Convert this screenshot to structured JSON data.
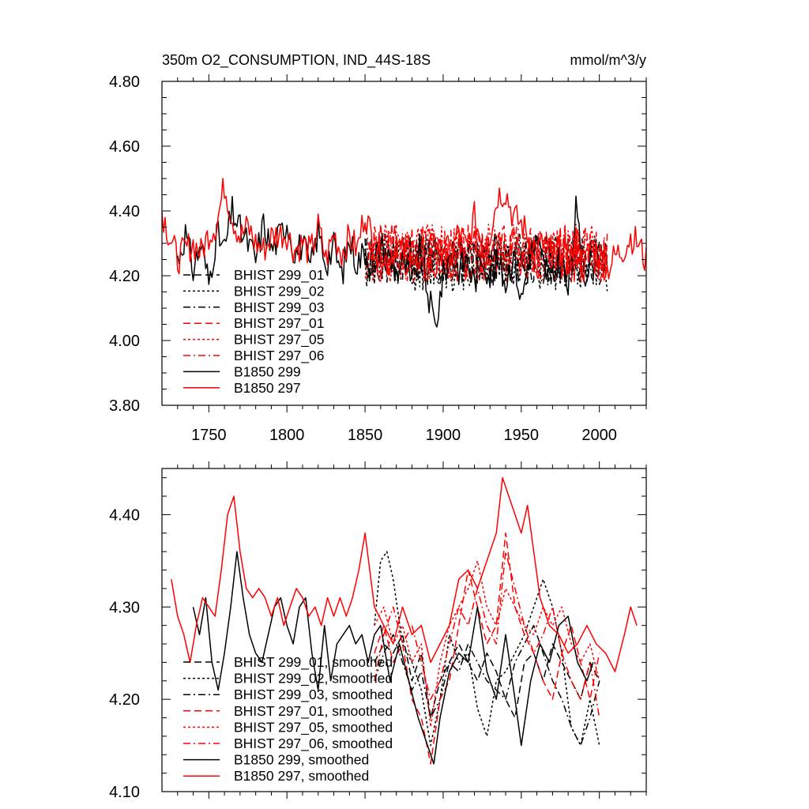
{
  "title_left": "350m O2_CONSUMPTION, IND_44S-18S",
  "title_right": "mmol/m^3/y",
  "colors": {
    "black": "#000000",
    "red": "#ff0000"
  },
  "chart_data": [
    {
      "type": "line",
      "title": "350m O2_CONSUMPTION, IND_44S-18S",
      "units": "mmol/m^3/y",
      "xlim": [
        1720,
        2030
      ],
      "ylim": [
        3.8,
        4.8
      ],
      "x_ticks": [
        1750,
        1800,
        1850,
        1900,
        1950,
        2000
      ],
      "x_tick_labels": [
        "1750",
        "1800",
        "1850",
        "1900",
        "1950",
        "2000"
      ],
      "y_ticks": [
        3.8,
        4.0,
        4.2,
        4.4,
        4.6,
        4.8
      ],
      "y_tick_labels": [
        "3.80",
        "4.00",
        "4.20",
        "4.40",
        "4.60",
        "4.80"
      ],
      "legend": "lower-left",
      "series": [
        {
          "name": "BHIST 299_01",
          "color": "#000000",
          "dash": "long-dash",
          "start": 1850,
          "end": 2005,
          "mean": 4.25,
          "amp": 0.08,
          "seed": 11
        },
        {
          "name": "BHIST 299_02",
          "color": "#000000",
          "dash": "dot",
          "start": 1850,
          "end": 2005,
          "mean": 4.24,
          "amp": 0.09,
          "seed": 12
        },
        {
          "name": "BHIST 299_03",
          "color": "#000000",
          "dash": "dash-dot",
          "start": 1850,
          "end": 2005,
          "mean": 4.25,
          "amp": 0.08,
          "seed": 13
        },
        {
          "name": "BHIST 297_01",
          "color": "#ff0000",
          "dash": "long-dash",
          "start": 1850,
          "end": 2005,
          "mean": 4.27,
          "amp": 0.09,
          "seed": 21
        },
        {
          "name": "BHIST 297_05",
          "color": "#ff0000",
          "dash": "dot",
          "start": 1850,
          "end": 2005,
          "mean": 4.27,
          "amp": 0.09,
          "seed": 22
        },
        {
          "name": "BHIST 297_06",
          "color": "#ff0000",
          "dash": "dash-dot",
          "start": 1850,
          "end": 2005,
          "mean": 4.27,
          "amp": 0.09,
          "seed": 23
        },
        {
          "name": "B1850 299",
          "color": "#000000",
          "dash": "solid",
          "start": 1730,
          "end": 1995,
          "x": [
            1730,
            1735,
            1740,
            1745,
            1750,
            1755,
            1760,
            1765,
            1770,
            1775,
            1780,
            1785,
            1790,
            1795,
            1800,
            1805,
            1810,
            1815,
            1820,
            1825,
            1830,
            1835,
            1840,
            1845,
            1850,
            1855,
            1860,
            1865,
            1870,
            1875,
            1880,
            1885,
            1890,
            1895,
            1900,
            1905,
            1910,
            1915,
            1920,
            1925,
            1930,
            1935,
            1940,
            1945,
            1950,
            1955,
            1960,
            1965,
            1970,
            1975,
            1980,
            1985,
            1990,
            1995
          ],
          "y": [
            4.25,
            4.33,
            4.22,
            4.3,
            4.18,
            4.33,
            4.28,
            4.4,
            4.34,
            4.3,
            4.25,
            4.36,
            4.28,
            4.32,
            4.37,
            4.27,
            4.3,
            4.22,
            4.34,
            4.24,
            4.29,
            4.2,
            4.31,
            4.24,
            4.28,
            4.22,
            4.3,
            4.26,
            4.21,
            4.25,
            4.16,
            4.28,
            4.15,
            4.04,
            4.2,
            4.27,
            4.22,
            4.25,
            4.18,
            4.26,
            4.2,
            4.24,
            4.18,
            4.27,
            4.12,
            4.26,
            4.3,
            4.22,
            4.18,
            4.27,
            4.15,
            4.4,
            4.2,
            4.27
          ],
          "amp": 0.05,
          "seed": 31
        },
        {
          "name": "B1850 297",
          "color": "#ff0000",
          "dash": "solid",
          "start": 1720,
          "end": 2030,
          "x": [
            1720,
            1725,
            1730,
            1735,
            1740,
            1745,
            1750,
            1755,
            1760,
            1765,
            1770,
            1775,
            1780,
            1785,
            1790,
            1795,
            1800,
            1805,
            1810,
            1815,
            1820,
            1825,
            1830,
            1835,
            1840,
            1845,
            1850,
            1855,
            1860,
            1865,
            1870,
            1875,
            1880,
            1885,
            1890,
            1895,
            1900,
            1905,
            1910,
            1915,
            1920,
            1925,
            1930,
            1935,
            1940,
            1945,
            1950,
            1955,
            1960,
            1965,
            1970,
            1975,
            1980,
            1985,
            1990,
            1995,
            2000,
            2005,
            2010,
            2015,
            2020,
            2025,
            2030
          ],
          "y": [
            4.4,
            4.32,
            4.25,
            4.28,
            4.3,
            4.27,
            4.33,
            4.36,
            4.48,
            4.38,
            4.32,
            4.35,
            4.3,
            4.28,
            4.32,
            4.33,
            4.33,
            4.28,
            4.3,
            4.27,
            4.35,
            4.25,
            4.33,
            4.27,
            4.32,
            4.28,
            4.4,
            4.3,
            4.28,
            4.24,
            4.3,
            4.27,
            4.28,
            4.2,
            4.24,
            4.22,
            4.3,
            4.26,
            4.34,
            4.28,
            4.38,
            4.3,
            4.33,
            4.45,
            4.46,
            4.38,
            4.36,
            4.32,
            4.28,
            4.3,
            4.26,
            4.28,
            4.24,
            4.3,
            4.22,
            4.3,
            4.26,
            4.22,
            4.26,
            4.28,
            4.32,
            4.3,
            4.24
          ],
          "amp": 0.05,
          "seed": 32
        }
      ]
    },
    {
      "type": "line",
      "title": "",
      "xlim": [
        1720,
        2030
      ],
      "ylim": [
        4.1,
        4.45
      ],
      "x_ticks": [
        1750,
        1800,
        1850,
        1900,
        1950,
        2000
      ],
      "y_ticks": [
        4.1,
        4.2,
        4.3,
        4.4
      ],
      "y_tick_labels": [
        "4.10",
        "4.20",
        "4.30",
        "4.40"
      ],
      "legend": "lower-left",
      "series": [
        {
          "name": "BHIST 299_01, smoothed",
          "color": "#000000",
          "dash": "long-dash",
          "x": [
            1856,
            1862,
            1868,
            1874,
            1880,
            1886,
            1892,
            1898,
            1904,
            1910,
            1916,
            1922,
            1928,
            1934,
            1940,
            1946,
            1952,
            1958,
            1964,
            1970,
            1976,
            1982,
            1988,
            1994,
            2000
          ],
          "y": [
            4.24,
            4.26,
            4.25,
            4.27,
            4.22,
            4.25,
            4.18,
            4.22,
            4.24,
            4.26,
            4.24,
            4.22,
            4.25,
            4.23,
            4.2,
            4.18,
            4.24,
            4.25,
            4.22,
            4.26,
            4.24,
            4.22,
            4.2,
            4.24,
            4.22
          ]
        },
        {
          "name": "BHIST 299_02, smoothed",
          "color": "#000000",
          "dash": "dot",
          "x": [
            1856,
            1860,
            1864,
            1868,
            1874,
            1880,
            1886,
            1892,
            1898,
            1904,
            1910,
            1916,
            1922,
            1928,
            1934,
            1940,
            1946,
            1952,
            1958,
            1964,
            1970,
            1976,
            1982,
            1988,
            1994,
            2000
          ],
          "y": [
            4.28,
            4.35,
            4.36,
            4.33,
            4.26,
            4.24,
            4.21,
            4.15,
            4.2,
            4.27,
            4.24,
            4.25,
            4.19,
            4.16,
            4.22,
            4.23,
            4.25,
            4.27,
            4.3,
            4.33,
            4.3,
            4.25,
            4.17,
            4.15,
            4.2,
            4.15
          ]
        },
        {
          "name": "BHIST 299_03, smoothed",
          "color": "#000000",
          "dash": "dash-dot",
          "x": [
            1856,
            1862,
            1868,
            1874,
            1880,
            1886,
            1892,
            1898,
            1904,
            1910,
            1916,
            1922,
            1928,
            1934,
            1940,
            1946,
            1952,
            1958,
            1964,
            1970,
            1976,
            1982,
            1988,
            1994,
            2000
          ],
          "y": [
            4.22,
            4.25,
            4.27,
            4.24,
            4.21,
            4.23,
            4.18,
            4.2,
            4.24,
            4.23,
            4.26,
            4.24,
            4.22,
            4.21,
            4.2,
            4.24,
            4.26,
            4.28,
            4.25,
            4.22,
            4.2,
            4.17,
            4.15,
            4.18,
            4.22
          ]
        },
        {
          "name": "BHIST 297_01, smoothed",
          "color": "#ff0000",
          "dash": "long-dash",
          "x": [
            1856,
            1862,
            1868,
            1874,
            1880,
            1886,
            1892,
            1898,
            1904,
            1910,
            1916,
            1922,
            1928,
            1934,
            1940,
            1946,
            1952,
            1958,
            1964,
            1970,
            1976,
            1982,
            1988,
            1994,
            2000
          ],
          "y": [
            4.25,
            4.28,
            4.24,
            4.26,
            4.2,
            4.18,
            4.13,
            4.2,
            4.22,
            4.28,
            4.34,
            4.3,
            4.26,
            4.28,
            4.38,
            4.3,
            4.27,
            4.25,
            4.22,
            4.2,
            4.25,
            4.28,
            4.24,
            4.2,
            4.25
          ]
        },
        {
          "name": "BHIST 297_05, smoothed",
          "color": "#ff0000",
          "dash": "dot",
          "x": [
            1856,
            1862,
            1868,
            1874,
            1880,
            1886,
            1892,
            1898,
            1904,
            1910,
            1916,
            1922,
            1928,
            1934,
            1940,
            1946,
            1952,
            1958,
            1964,
            1970,
            1976,
            1982,
            1988,
            1994,
            2000
          ],
          "y": [
            4.28,
            4.3,
            4.26,
            4.28,
            4.24,
            4.26,
            4.17,
            4.24,
            4.28,
            4.3,
            4.32,
            4.35,
            4.3,
            4.28,
            4.32,
            4.3,
            4.28,
            4.27,
            4.3,
            4.28,
            4.3,
            4.26,
            4.24,
            4.26,
            4.22
          ]
        },
        {
          "name": "BHIST 297_06, smoothed",
          "color": "#ff0000",
          "dash": "dash-dot",
          "x": [
            1856,
            1862,
            1868,
            1874,
            1880,
            1886,
            1892,
            1898,
            1904,
            1910,
            1916,
            1922,
            1928,
            1934,
            1940,
            1946,
            1952,
            1958,
            1964,
            1970,
            1976,
            1982,
            1988,
            1994,
            2000
          ],
          "y": [
            4.22,
            4.27,
            4.3,
            4.26,
            4.28,
            4.24,
            4.2,
            4.22,
            4.26,
            4.3,
            4.28,
            4.32,
            4.28,
            4.26,
            4.36,
            4.32,
            4.28,
            4.25,
            4.27,
            4.3,
            4.25,
            4.22,
            4.2,
            4.24,
            4.18
          ]
        },
        {
          "name": "B1850 299, smoothed",
          "color": "#000000",
          "dash": "solid",
          "x": [
            1740,
            1744,
            1748,
            1752,
            1756,
            1760,
            1764,
            1768,
            1772,
            1776,
            1780,
            1784,
            1788,
            1792,
            1796,
            1800,
            1804,
            1808,
            1812,
            1816,
            1820,
            1824,
            1828,
            1832,
            1836,
            1840,
            1844,
            1848,
            1852,
            1856,
            1860,
            1866,
            1872,
            1878,
            1884,
            1890,
            1894,
            1898,
            1904,
            1910,
            1916,
            1922,
            1928,
            1934,
            1940,
            1946,
            1950,
            1956,
            1962,
            1968,
            1974,
            1980,
            1986,
            1992,
            1996
          ],
          "y": [
            4.3,
            4.27,
            4.31,
            4.24,
            4.21,
            4.25,
            4.3,
            4.36,
            4.31,
            4.27,
            4.25,
            4.24,
            4.27,
            4.3,
            4.31,
            4.28,
            4.26,
            4.3,
            4.31,
            4.25,
            4.21,
            4.28,
            4.22,
            4.26,
            4.27,
            4.28,
            4.26,
            4.27,
            4.24,
            4.27,
            4.28,
            4.22,
            4.26,
            4.22,
            4.18,
            4.15,
            4.13,
            4.18,
            4.23,
            4.25,
            4.24,
            4.3,
            4.23,
            4.2,
            4.27,
            4.2,
            4.15,
            4.22,
            4.26,
            4.24,
            4.28,
            4.29,
            4.24,
            4.22,
            4.24
          ]
        },
        {
          "name": "B1850 297, smoothed",
          "color": "#ff0000",
          "dash": "solid",
          "x": [
            1726,
            1730,
            1734,
            1738,
            1742,
            1746,
            1750,
            1754,
            1758,
            1762,
            1766,
            1770,
            1774,
            1778,
            1782,
            1786,
            1790,
            1794,
            1798,
            1802,
            1806,
            1810,
            1814,
            1818,
            1822,
            1826,
            1830,
            1834,
            1838,
            1842,
            1846,
            1850,
            1856,
            1862,
            1868,
            1874,
            1880,
            1886,
            1892,
            1898,
            1904,
            1910,
            1916,
            1922,
            1928,
            1934,
            1938,
            1942,
            1946,
            1950,
            1954,
            1958,
            1962,
            1968,
            1974,
            1980,
            1986,
            1992,
            1998,
            2004,
            2010,
            2016,
            2020,
            2024
          ],
          "y": [
            4.33,
            4.29,
            4.27,
            4.24,
            4.28,
            4.31,
            4.3,
            4.29,
            4.34,
            4.4,
            4.42,
            4.36,
            4.32,
            4.31,
            4.32,
            4.31,
            4.29,
            4.31,
            4.28,
            4.3,
            4.32,
            4.31,
            4.29,
            4.3,
            4.28,
            4.31,
            4.29,
            4.31,
            4.29,
            4.31,
            4.34,
            4.38,
            4.3,
            4.28,
            4.26,
            4.3,
            4.27,
            4.28,
            4.24,
            4.26,
            4.28,
            4.33,
            4.34,
            4.32,
            4.35,
            4.38,
            4.44,
            4.42,
            4.4,
            4.38,
            4.41,
            4.36,
            4.31,
            4.28,
            4.27,
            4.25,
            4.26,
            4.28,
            4.26,
            4.25,
            4.23,
            4.27,
            4.3,
            4.28
          ]
        }
      ]
    }
  ]
}
